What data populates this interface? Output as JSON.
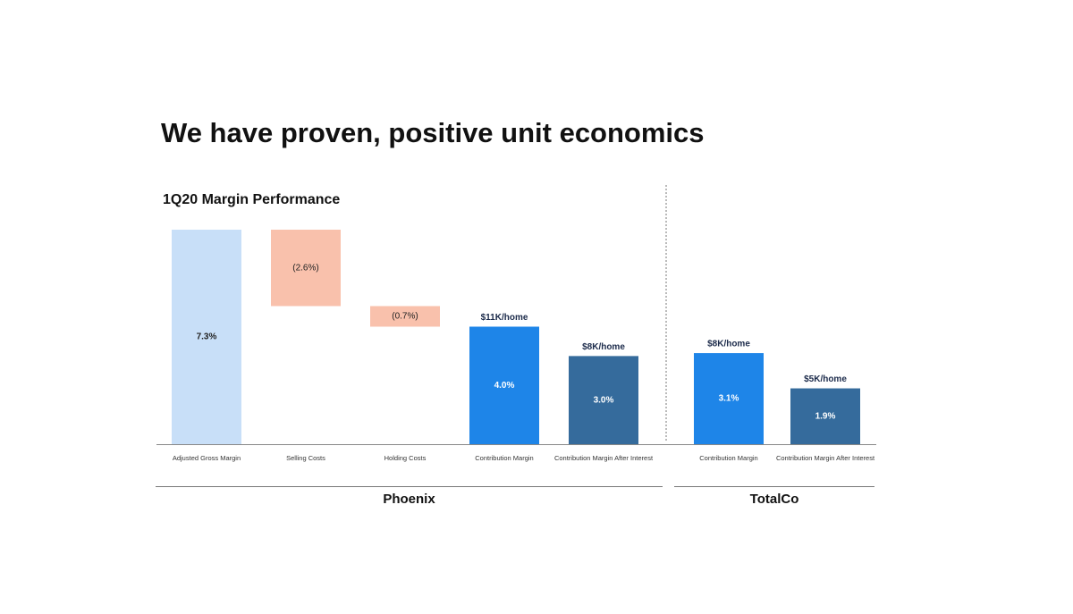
{
  "title": "We have proven, positive unit economics",
  "chart_data": {
    "type": "waterfall",
    "title": "1Q20 Margin Performance",
    "groups": [
      {
        "name": "Phoenix",
        "categories": [
          "Adjusted Gross Margin",
          "Selling Costs",
          "Holding Costs",
          "Contribution Margin",
          "Contribution Margin After Interest"
        ],
        "values": [
          7.3,
          -2.6,
          -0.7,
          4.0,
          3.0
        ],
        "value_labels": [
          "7.3%",
          "(2.6%)",
          "(0.7%)",
          "4.0%",
          "3.0%"
        ],
        "measure": [
          "absolute",
          "relative",
          "relative",
          "absolute",
          "absolute"
        ],
        "annotations": [
          null,
          null,
          null,
          "$11K/home",
          "$8K/home"
        ],
        "colors": [
          "#c8dff8",
          "#f9c1ac",
          "#f9c1ac",
          "#1e85e8",
          "#356b9c"
        ]
      },
      {
        "name": "TotalCo",
        "categories": [
          "Contribution Margin",
          "Contribution Margin After Interest"
        ],
        "values": [
          3.1,
          1.9
        ],
        "value_labels": [
          "3.1%",
          "1.9%"
        ],
        "measure": [
          "absolute",
          "absolute"
        ],
        "annotations": [
          "$8K/home",
          "$5K/home"
        ],
        "colors": [
          "#1e85e8",
          "#356b9c"
        ]
      }
    ]
  }
}
